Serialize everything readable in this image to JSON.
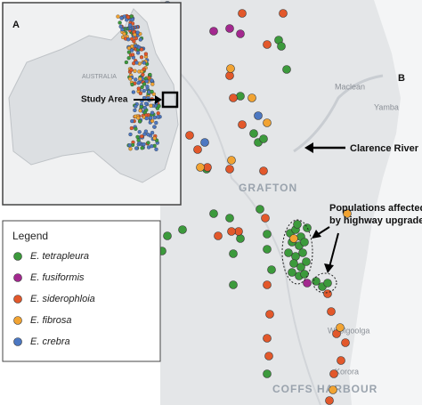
{
  "panel_a": {
    "label": "A",
    "country": "AUSTRALIA",
    "study_area": "Study Area"
  },
  "panel_b": {
    "label": "B",
    "river": "Clarence River",
    "places": [
      "Maclean",
      "Yamba",
      "Woolgoolga",
      "Korora"
    ],
    "cities": [
      "GRAFTON",
      "COFFS HARBOUR"
    ],
    "annotation": [
      "Populations affected",
      "by highway upgrade"
    ]
  },
  "legend": {
    "title": "Legend",
    "items": [
      {
        "name": "E. tetrapleura",
        "color": "#3c9a3c"
      },
      {
        "name": "E. fusiformis",
        "color": "#a3288f"
      },
      {
        "name": "E. siderophloia",
        "color": "#e2582b"
      },
      {
        "name": "E. fibrosa",
        "color": "#f1a332"
      },
      {
        "name": "E. crebra",
        "color": "#4c78c2"
      }
    ]
  }
}
